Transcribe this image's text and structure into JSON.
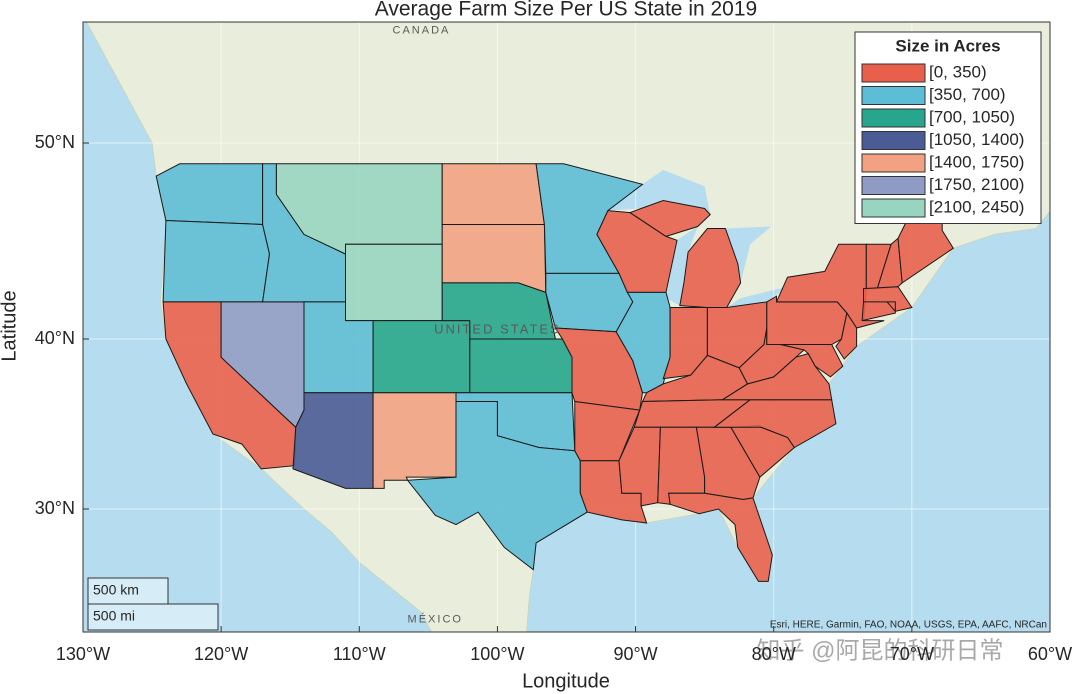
{
  "map": {
    "title": "Average Farm Size Per US State in 2019",
    "xlabel": "Longitude",
    "ylabel": "Latitude",
    "xlim": [
      -130,
      -60
    ],
    "ylim": [
      21.6,
      55.6
    ],
    "xticks": [
      {
        "value": -130,
        "label": "130°W"
      },
      {
        "value": -120,
        "label": "120°W"
      },
      {
        "value": -110,
        "label": "110°W"
      },
      {
        "value": -100,
        "label": "100°W"
      },
      {
        "value": -90,
        "label": "90°W"
      },
      {
        "value": -80,
        "label": "80°W"
      },
      {
        "value": -70,
        "label": "70°W"
      },
      {
        "value": -60,
        "label": "60°W"
      }
    ],
    "yticks": [
      {
        "value": 30,
        "label": "30°N"
      },
      {
        "value": 40,
        "label": "40°N"
      },
      {
        "value": 50,
        "label": "50°N"
      }
    ],
    "grid": true,
    "legend": {
      "title": "Size in Acres",
      "position": "upper right",
      "items": [
        {
          "label": "[0, 350)",
          "color": "#e8604c"
        },
        {
          "label": "[350, 700)",
          "color": "#5dbdd6"
        },
        {
          "label": "[700, 1050)",
          "color": "#27a68d"
        },
        {
          "label": "[1050, 1400)",
          "color": "#4b5b96"
        },
        {
          "label": "[1400, 1750)",
          "color": "#f2a283"
        },
        {
          "label": "[1750, 2100)",
          "color": "#8f9bc5"
        },
        {
          "label": "[2100, 2450)",
          "color": "#98d5c1"
        }
      ]
    },
    "states": [
      1,
      1,
      0,
      5,
      1,
      6,
      6,
      1,
      3,
      2,
      4,
      4,
      4,
      2,
      2,
      1,
      1,
      1,
      1,
      0,
      0,
      0,
      0,
      1,
      0,
      0,
      0,
      0,
      0,
      0,
      0,
      0,
      0,
      0,
      0,
      0,
      0,
      0,
      0,
      0,
      0,
      0,
      0,
      0,
      0
    ],
    "basemap_labels": [
      "CANADA",
      "UNITED STATES",
      "MÉXICO"
    ],
    "scale_bar": [
      "500 km",
      "500 mi"
    ],
    "attribution": "Esri, HERE, Garmin, FAO, NOAA, USGS, EPA, AAFC, NRCan",
    "watermark": "知乎 @阿昆的科研日常"
  }
}
